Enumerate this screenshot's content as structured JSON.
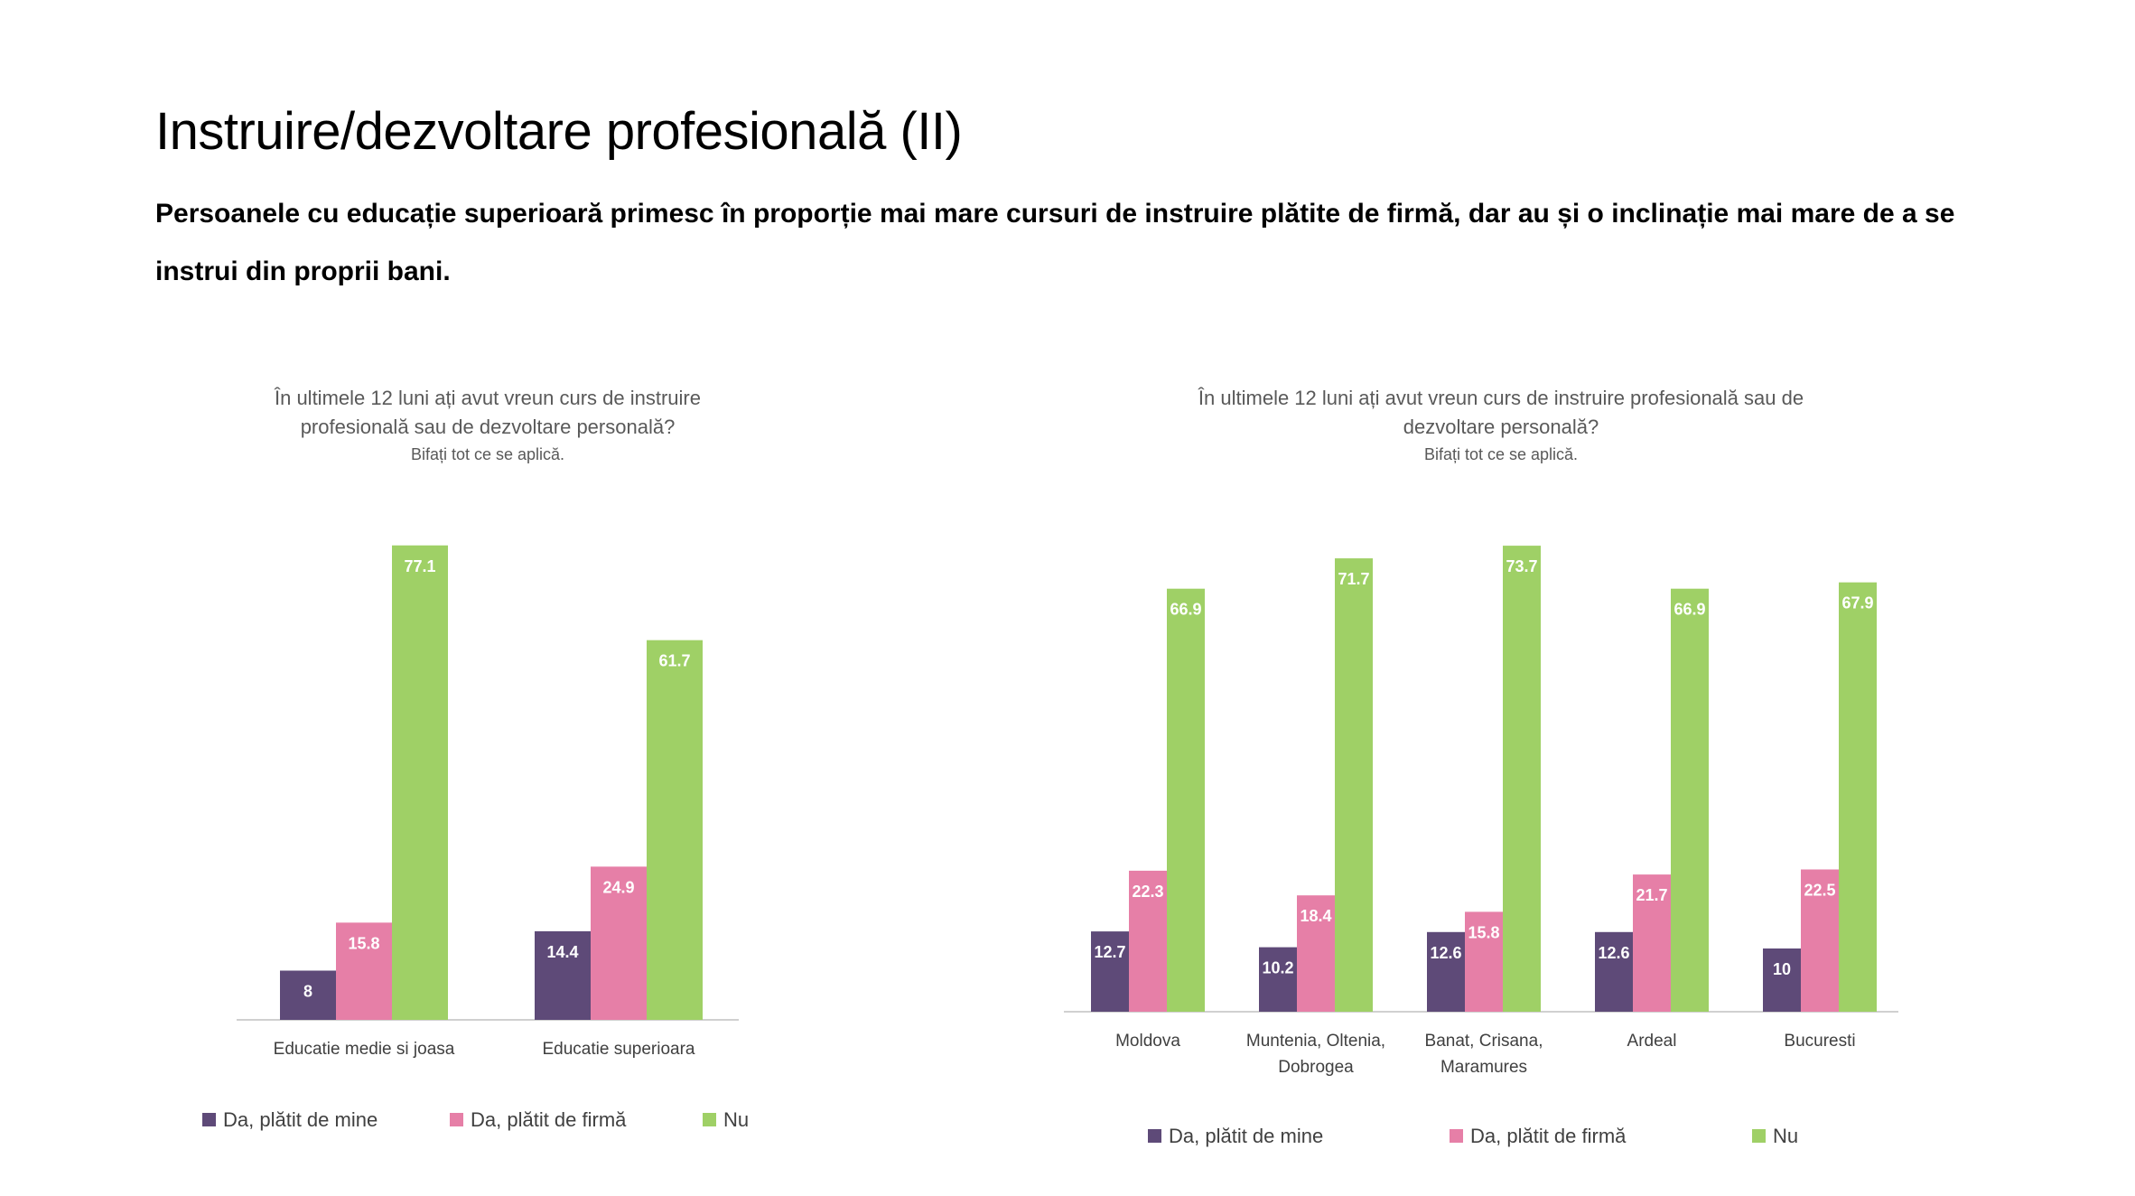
{
  "slide": {
    "title": "Instruire/dezvoltare profesională (II)",
    "subtitle": "Persoanele cu educație superioară primesc în proporție mai mare cursuri de instruire plătite de firmă, dar au și o inclinație mai mare de a se instrui din proprii bani."
  },
  "colors": {
    "da_mine": "#5e4a78",
    "da_firma": "#e67fa7",
    "nu": "#9fd066"
  },
  "chart_data": [
    {
      "type": "bar",
      "title_lines": [
        "În ultimele 12 luni ați avut vreun curs de instruire",
        "profesională sau de dezvoltare personală?"
      ],
      "subtitle": "Bifați tot ce se aplică.",
      "categories": [
        [
          "Educatie medie si joasa"
        ],
        [
          "Educatie superioara"
        ]
      ],
      "series": [
        {
          "name": "Da, plătit de mine",
          "color": "#5e4a78",
          "values": [
            8,
            14.4
          ]
        },
        {
          "name": "Da, plătit de firmă",
          "color": "#e67fa7",
          "values": [
            15.8,
            24.9
          ]
        },
        {
          "name": "Nu",
          "color": "#9fd066",
          "values": [
            77.1,
            61.7
          ]
        }
      ],
      "ylim": [
        0,
        80
      ],
      "grid": false,
      "legend": "bottom"
    },
    {
      "type": "bar",
      "title_lines": [
        "În ultimele 12 luni ați avut vreun curs de instruire profesională sau de",
        "dezvoltare personală?"
      ],
      "subtitle": "Bifați tot ce se aplică.",
      "categories": [
        [
          "Moldova"
        ],
        [
          "Muntenia, Oltenia,",
          "Dobrogea"
        ],
        [
          "Banat, Crisana,",
          "Maramures"
        ],
        [
          "Ardeal"
        ],
        [
          "Bucuresti"
        ]
      ],
      "series": [
        {
          "name": "Da, plătit de mine",
          "color": "#5e4a78",
          "values": [
            12.7,
            10.2,
            12.6,
            12.6,
            10
          ]
        },
        {
          "name": "Da, plătit de firmă",
          "color": "#e67fa7",
          "values": [
            22.3,
            18.4,
            15.8,
            21.7,
            22.5
          ]
        },
        {
          "name": "Nu",
          "color": "#9fd066",
          "values": [
            66.9,
            71.7,
            73.7,
            66.9,
            67.9
          ]
        }
      ],
      "ylim": [
        0,
        76
      ],
      "grid": false,
      "legend": "bottom"
    }
  ]
}
